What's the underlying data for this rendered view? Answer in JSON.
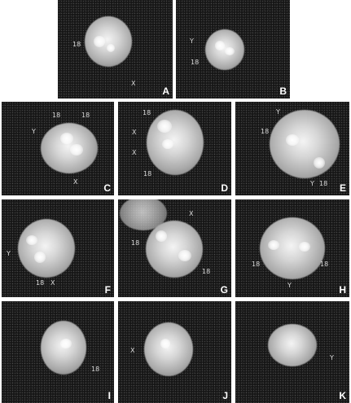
{
  "panels": [
    {
      "letter": "A",
      "labels": [
        "18",
        "X"
      ]
    },
    {
      "letter": "B",
      "labels": [
        "Y",
        "18"
      ]
    },
    {
      "letter": "C",
      "labels": [
        "18",
        "18",
        "Y",
        "X"
      ]
    },
    {
      "letter": "D",
      "labels": [
        "18",
        "X",
        "X",
        "18"
      ]
    },
    {
      "letter": "E",
      "labels": [
        "Y",
        "18",
        "Y",
        "18"
      ]
    },
    {
      "letter": "F",
      "labels": [
        "Y",
        "18",
        "X"
      ]
    },
    {
      "letter": "G",
      "labels": [
        "X",
        "18",
        "18"
      ]
    },
    {
      "letter": "H",
      "labels": [
        "18",
        "18",
        "Y"
      ]
    },
    {
      "letter": "I",
      "labels": [
        "18"
      ]
    },
    {
      "letter": "J",
      "labels": [
        "X"
      ]
    },
    {
      "letter": "K",
      "labels": [
        "Y"
      ]
    }
  ]
}
